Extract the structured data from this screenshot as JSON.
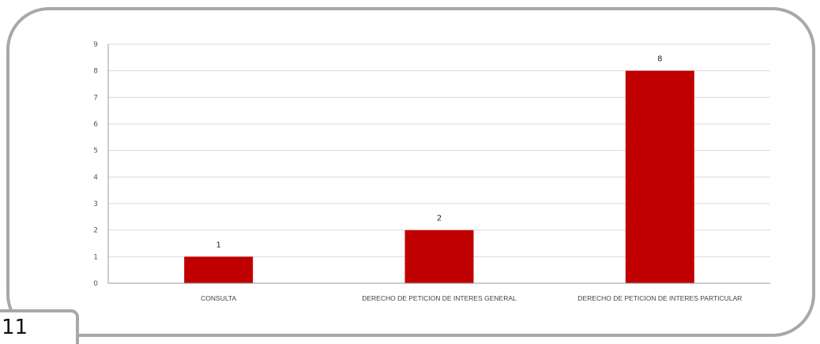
{
  "page": {
    "number": "11"
  },
  "chart_data": {
    "type": "bar",
    "categories": [
      "CONSULTA",
      "DERECHO DE PETICION DE INTERES GENERAL",
      "DERECHO DE PETICION DE INTERES PARTICULAR"
    ],
    "values": [
      1,
      2,
      8
    ],
    "data_labels": [
      "1",
      "2",
      "8"
    ],
    "yticks": [
      "0",
      "1",
      "2",
      "3",
      "4",
      "5",
      "6",
      "7",
      "8",
      "9"
    ],
    "ylim": [
      0,
      9
    ],
    "grid": true,
    "legend": "none",
    "bar_color": "#c00000",
    "grid_color": "#d9d9d9",
    "axis_color": "#999999",
    "title": "",
    "xlabel": "",
    "ylabel": ""
  }
}
